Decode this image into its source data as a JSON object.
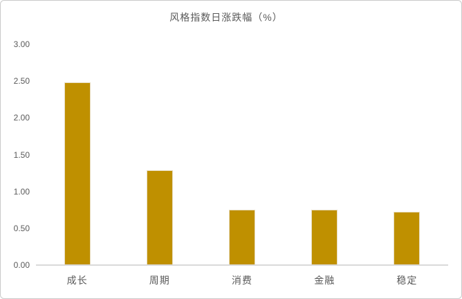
{
  "chart_data": {
    "type": "bar",
    "title": "风格指数日涨跌幅（%）",
    "categories": [
      "成长",
      "周期",
      "消费",
      "金融",
      "稳定"
    ],
    "values": [
      2.48,
      1.29,
      0.75,
      0.75,
      0.72
    ],
    "xlabel": "",
    "ylabel": "",
    "ylim": [
      0,
      3
    ],
    "y_ticks": [
      "3.00",
      "2.50",
      "2.00",
      "1.50",
      "1.00",
      "0.50",
      "0.00"
    ],
    "grid": false,
    "legend": false,
    "bar_color": "#BF9000"
  },
  "colors": {
    "bar": "#BF9000",
    "bar_edge": "#e7dcc0",
    "text": "#595959",
    "axis_line": "#d9d9d9",
    "frame_border": "#c9c9c9",
    "background": "#ffffff"
  }
}
